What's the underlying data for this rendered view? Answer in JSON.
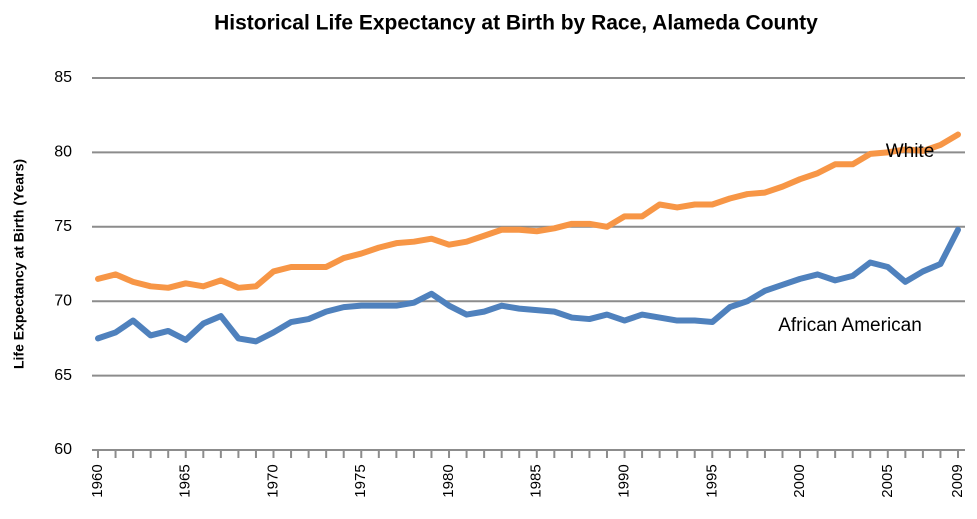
{
  "chart_data": {
    "type": "line",
    "title": "Historical Life Expectancy at Birth by Race, Alameda County",
    "y_label": "Life Expectancy at Birth (Years)",
    "x": [
      1960,
      1961,
      1962,
      1963,
      1964,
      1965,
      1966,
      1967,
      1968,
      1969,
      1970,
      1971,
      1972,
      1973,
      1974,
      1975,
      1976,
      1977,
      1978,
      1979,
      1980,
      1981,
      1982,
      1983,
      1984,
      1985,
      1986,
      1987,
      1988,
      1989,
      1990,
      1991,
      1992,
      1993,
      1994,
      1995,
      1996,
      1997,
      1998,
      1999,
      2000,
      2001,
      2002,
      2003,
      2004,
      2005,
      2006,
      2007,
      2008,
      2009
    ],
    "series": [
      {
        "name": "White",
        "color": "#f79646",
        "values": [
          71.5,
          71.8,
          71.3,
          71.0,
          70.9,
          71.2,
          71.0,
          71.4,
          70.9,
          71.0,
          72.0,
          72.3,
          72.3,
          72.3,
          72.9,
          73.2,
          73.6,
          73.9,
          74.0,
          74.2,
          73.8,
          74.0,
          74.4,
          74.8,
          74.8,
          74.7,
          74.9,
          75.2,
          75.2,
          75.0,
          75.7,
          75.7,
          76.5,
          76.3,
          76.5,
          76.5,
          76.9,
          77.2,
          77.3,
          77.7,
          78.2,
          78.6,
          79.2,
          79.2,
          79.9,
          80.0,
          80.2,
          80.1,
          80.5,
          81.2
        ]
      },
      {
        "name": "African American",
        "color": "#4f81bd",
        "values": [
          67.5,
          67.9,
          68.7,
          67.7,
          68.0,
          67.4,
          68.5,
          69.0,
          67.5,
          67.3,
          67.9,
          68.6,
          68.8,
          69.3,
          69.6,
          69.7,
          69.7,
          69.7,
          69.9,
          70.5,
          69.7,
          69.1,
          69.3,
          69.7,
          69.5,
          69.4,
          69.3,
          68.9,
          68.8,
          69.1,
          68.7,
          69.1,
          68.9,
          68.7,
          68.7,
          68.6,
          69.6,
          70.0,
          70.7,
          71.1,
          71.5,
          71.8,
          71.4,
          71.7,
          72.6,
          72.3,
          71.3,
          72.0,
          72.5,
          74.8
        ]
      }
    ],
    "xlim": [
      1960,
      2009
    ],
    "xticks": [
      1960,
      1965,
      1970,
      1975,
      1980,
      1985,
      1990,
      1995,
      2000,
      2005,
      2009
    ],
    "ylim": [
      60,
      85
    ],
    "yticks": [
      60,
      65,
      70,
      75,
      80,
      85
    ],
    "grid": true
  }
}
